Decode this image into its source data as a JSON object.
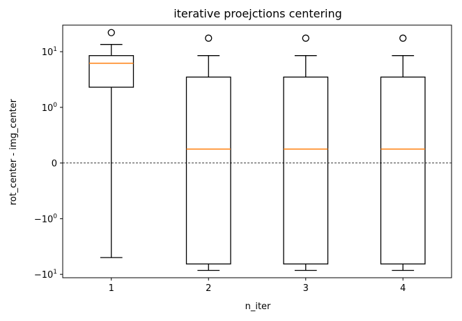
{
  "chart_data": {
    "type": "box",
    "title": "iterative proejctions centering",
    "xlabel": "n_iter",
    "ylabel": "rot_center - img_center",
    "y_scale": "symlog",
    "y_linthresh": 1,
    "ylim": [
      -11.5,
      30
    ],
    "categories": [
      "1",
      "2",
      "3",
      "4"
    ],
    "boxes": [
      {
        "category": "1",
        "whisker_low": -5.0,
        "q1": 2.3,
        "median": 6.2,
        "q3": 8.5,
        "whisker_high": 13.5,
        "outliers": [
          22.0
        ]
      },
      {
        "category": "2",
        "whisker_low": -8.5,
        "q1": -6.5,
        "median": 0.25,
        "q3": 3.5,
        "whisker_high": 8.5,
        "outliers": [
          17.5
        ]
      },
      {
        "category": "3",
        "whisker_low": -8.5,
        "q1": -6.5,
        "median": 0.25,
        "q3": 3.5,
        "whisker_high": 8.5,
        "outliers": [
          17.5
        ]
      },
      {
        "category": "4",
        "whisker_low": -8.5,
        "q1": -6.5,
        "median": 0.25,
        "q3": 3.5,
        "whisker_high": 8.5,
        "outliers": [
          17.5
        ]
      }
    ],
    "reference_line": {
      "y": 0,
      "style": "dashed"
    },
    "y_ticks": [
      {
        "value": 10,
        "base": "10",
        "exp": "1"
      },
      {
        "value": 1,
        "base": "10",
        "exp": "0"
      },
      {
        "value": 0,
        "base": "0",
        "exp": ""
      },
      {
        "value": -1,
        "base": "−10",
        "exp": "0"
      },
      {
        "value": -10,
        "base": "−10",
        "exp": "1"
      }
    ],
    "colors": {
      "box": "#000000",
      "median": "#ff7f0e",
      "reference": "#000000"
    },
    "grid": false,
    "legend": "none"
  }
}
